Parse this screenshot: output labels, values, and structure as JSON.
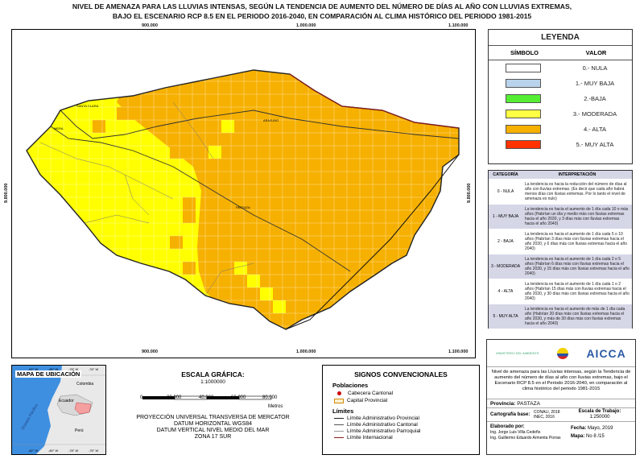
{
  "title": {
    "line1": "NIVEL DE AMENAZA PARA LAS LLUVIAS INTENSAS, SEGÚN LA TENDENCIA DE AUMENTO DEL NÚMERO DE DÍAS AL AÑO CON LLUVIAS EXTREMAS,",
    "line2": "BAJO EL ESCENARIO RCP 8.5 EN EL PERIODO 2016-2040, EN COMPARACIÓN AL CLIMA HISTÓRICO DEL PERIODO 1981-2015"
  },
  "map": {
    "coords": {
      "x1": "900.000",
      "x2": "1.000.000",
      "x3": "1.100.000",
      "y1": "9.800.000"
    },
    "places": {
      "santa_clara": "SANTA CLARA",
      "mera": "MERA",
      "arajuno": "ARAJUNO",
      "pastaza": "PASTAZA"
    },
    "colors": {
      "alta": "#f6b000",
      "moderada": "#ffff00",
      "baja": "#66ff33",
      "muy_baja": "#c4d8ec",
      "muy_alta": "#ff3300"
    }
  },
  "legend": {
    "title": "LEYENDA",
    "col_symbol": "SÍMBOLO",
    "col_value": "VALOR",
    "items": [
      {
        "label": "0.- NULA",
        "color": "#ffffff"
      },
      {
        "label": "1.- MUY BAJA",
        "color": "#b9d3ec"
      },
      {
        "label": "2.-BAJA",
        "color": "#55ee33"
      },
      {
        "label": "3.- MODERADA",
        "color": "#ffff44"
      },
      {
        "label": "4.- ALTA",
        "color": "#f6b000"
      },
      {
        "label": "5.- MUY ALTA",
        "color": "#ff3300"
      }
    ]
  },
  "interpretation": {
    "col_category": "CATEGORÍA",
    "col_interp": "INTERPRETACIÓN",
    "rows": [
      {
        "cat": "0 - NULA",
        "text": "La tendencia es hacia la reducción del número de días al año con lluvias extremas. (Es decir que cada año habrá menos días con lluvias extremas. Por lo tanto el nivel de amenaza es nulo)"
      },
      {
        "cat": "1 - MUY BAJA",
        "text": "La tendencia es hacia el aumento de 1 día cada 10 o más años (Habrían un día y medio más con lluvias extremas hacia el año 2030, y 3 días más con lluvias extremas hacia el año 2040)"
      },
      {
        "cat": "2 - BAJA",
        "text": "La tendencia es hacia el aumento de 1 día cada 5 o 10 años (Habrían 3 días más con lluvias extremas hacia el año 2030, y 6 días más con lluvias extremas hacia el año 2040)"
      },
      {
        "cat": "3 - MODERADA",
        "text": "La tendencia es hacia el aumento de 1 día cada 2 o 5 años (Habrían 6 días más con lluvias extremas hacia el año 2030, y 15 días más con lluvias extremas hacia el año 2040)"
      },
      {
        "cat": "4 - ALTA",
        "text": "La tendencia es hacia el aumento de 1 día cada 1 o 2 años (Habrían 15 días más con lluvias extremas hacia el año 2030, y 30 días más con lluvias extremas hacia el año 2040)"
      },
      {
        "cat": "5 - MUY ALTA",
        "text": "La tendencia es hacia el aumento de más de 1 día cada año (Habrían 20 días más con lluvias extremas hacia el año 2030, y más de 30 días más con lluvias extremas hacia el año 2040)"
      }
    ]
  },
  "inset": {
    "title": "MAPA DE UBICACIÓN",
    "top_ticks": [
      "-82° W",
      "-80° W",
      "-78° W",
      "-76° W"
    ],
    "bottom_ticks": [
      "-82° W",
      "-80° W",
      "-78° W",
      "-76° W"
    ],
    "ocean": "Oceano Pacifico",
    "countries": {
      "colombia": "Colombia",
      "ecuador": "Ecuador",
      "peru": "Perú"
    }
  },
  "scale": {
    "title": "ESCALA GRÁFICA:",
    "ratio": "1:1000000",
    "ticks": [
      "0",
      "20.000",
      "40.000",
      "60.000",
      "80.000"
    ],
    "unit": "Metros",
    "projection": [
      "PROYECCIÓN UNIVERSAL TRANSVERSA DE MERCATOR",
      "DATUM HORIZONTAL WGS84",
      "DATUM VERTICAL NIVEL MEDIO DEL MAR",
      "ZONA 17 SUR"
    ]
  },
  "signs": {
    "title": "SIGNOS CONVENCIONALES",
    "populations_title": "Poblaciones",
    "cabecera": "Cabecera Cantonal",
    "capital": "Capital Provincial",
    "limits_title": "Límites",
    "limits": [
      "Límite Administrativo Provincial",
      "Límite Administrativo Cantonal",
      "Límite Administrativo Parroquial",
      "Límite Internacional"
    ]
  },
  "institution": {
    "ministry": "MINISTERIO DEL AMBIENTE",
    "logo": "AICCA",
    "description": "Nivel de amenaza para las Lluvias intensas, según la Tendencia de aumento del número de días al año con lluvias extremas, bajo el Escenario RCP 8.5 en el Periodo 2016-2040, en comparación al clima histórico del periodo 1981-2015",
    "province_label": "Provincia:",
    "province": "PASTAZA",
    "carto_label": "Cartografía base:",
    "carto_values": [
      "CONALI, 2018",
      "INEC, 2016"
    ],
    "scale_label": "Escala de Trabajo:",
    "scale_value": "1:250000",
    "elaborated_label": "Elaborado por:",
    "authors": [
      "Ing. Jorge Luis Villa Cedeño",
      "Ing. Guillermo Eduardo Armenta Porras"
    ],
    "date_label": "Fecha:",
    "date": "Mayo, 2019",
    "map_label": "Mapa:",
    "map_no": "No 8 /15"
  }
}
